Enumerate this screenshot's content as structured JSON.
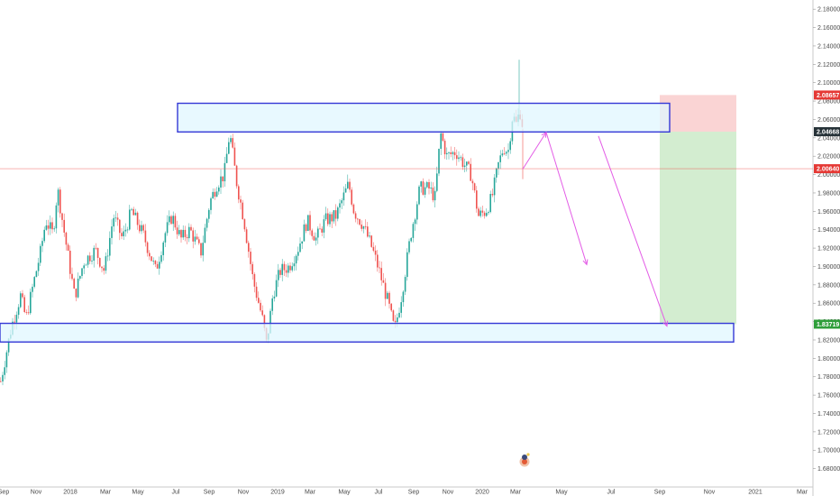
{
  "chart_data": {
    "type": "candlestick",
    "x_axis": {
      "tick_labels": [
        "Sep",
        "Nov",
        "2018",
        "Mar",
        "May",
        "Jul",
        "Sep",
        "Nov",
        "2019",
        "Mar",
        "May",
        "Jul",
        "Sep",
        "Nov",
        "2020",
        "Mar",
        "May",
        "Jul",
        "Sep",
        "Nov",
        "2021",
        "Mar"
      ]
    },
    "y_axis": {
      "range": [
        1.66,
        2.19
      ],
      "tick_labels": [
        "1.68000",
        "1.70000",
        "1.72000",
        "1.74000",
        "1.76000",
        "1.78000",
        "1.80000",
        "1.82000",
        "1.84000",
        "1.86000",
        "1.88000",
        "1.90000",
        "1.92000",
        "1.94000",
        "1.96000",
        "1.98000",
        "2.00000",
        "2.02000",
        "2.04000",
        "2.06000",
        "2.08000",
        "2.10000",
        "2.12000",
        "2.14000",
        "2.16000",
        "2.18000"
      ],
      "position": "right"
    },
    "price_tags": [
      {
        "label": "2.08657",
        "value": 2.08657,
        "color": "#e53935"
      },
      {
        "label": "2.04668",
        "value": 2.04668,
        "color": "#263238"
      },
      {
        "label": "2.00640",
        "value": 2.0064,
        "color": "#e53935"
      },
      {
        "label": "1.83719",
        "value": 1.83719,
        "color": "#2e9e3a"
      }
    ],
    "current_price_line": 2.0064,
    "zones": [
      {
        "name": "resistance",
        "low": 2.0464,
        "high": 2.0776,
        "color": "#e0f7ff",
        "border": "#3438d6"
      },
      {
        "name": "support",
        "low": 1.8178,
        "high": 1.8381,
        "color": "#e0f7ff",
        "border": "#3438d6"
      }
    ],
    "position_tool": {
      "entry": 2.04668,
      "stop": 2.08657,
      "target": 1.83719
    },
    "projection_arrows_color": "#e35ce6",
    "candle_colors": {
      "up": "#26a69a",
      "down": "#ef5350"
    },
    "price_path_keypoints": [
      [
        0,
        1.775
      ],
      [
        12,
        1.835
      ],
      [
        22,
        1.868
      ],
      [
        28,
        1.843
      ],
      [
        36,
        1.88
      ],
      [
        44,
        1.915
      ],
      [
        50,
        1.95
      ],
      [
        58,
        1.935
      ],
      [
        63,
        1.985
      ],
      [
        70,
        1.94
      ],
      [
        82,
        1.867
      ],
      [
        92,
        1.905
      ],
      [
        105,
        1.918
      ],
      [
        115,
        1.895
      ],
      [
        125,
        1.955
      ],
      [
        135,
        1.93
      ],
      [
        145,
        1.96
      ],
      [
        158,
        1.935
      ],
      [
        172,
        1.895
      ],
      [
        182,
        1.935
      ],
      [
        190,
        1.955
      ],
      [
        200,
        1.93
      ],
      [
        210,
        1.94
      ],
      [
        222,
        1.915
      ],
      [
        232,
        1.97
      ],
      [
        240,
        1.99
      ],
      [
        248,
        2.0
      ],
      [
        254,
        2.046
      ],
      [
        262,
        1.99
      ],
      [
        270,
        1.95
      ],
      [
        280,
        1.885
      ],
      [
        290,
        1.845
      ],
      [
        295,
        1.815
      ],
      [
        302,
        1.87
      ],
      [
        310,
        1.895
      ],
      [
        320,
        1.9
      ],
      [
        330,
        1.92
      ],
      [
        340,
        1.95
      ],
      [
        350,
        1.93
      ],
      [
        360,
        1.95
      ],
      [
        372,
        1.955
      ],
      [
        380,
        1.975
      ],
      [
        386,
        1.99
      ],
      [
        392,
        1.96
      ],
      [
        402,
        1.945
      ],
      [
        412,
        1.92
      ],
      [
        420,
        1.895
      ],
      [
        430,
        1.86
      ],
      [
        437,
        1.83
      ],
      [
        445,
        1.87
      ],
      [
        455,
        1.935
      ],
      [
        465,
        1.985
      ],
      [
        475,
        1.985
      ],
      [
        482,
        1.975
      ],
      [
        488,
        2.045
      ],
      [
        495,
        2.02
      ],
      [
        505,
        2.025
      ],
      [
        515,
        2.01
      ],
      [
        522,
        2.0
      ],
      [
        530,
        1.955
      ],
      [
        538,
        1.96
      ],
      [
        545,
        1.975
      ],
      [
        552,
        2.01
      ],
      [
        558,
        2.03
      ],
      [
        563,
        2.025
      ],
      [
        568,
        2.065
      ],
      [
        572,
        2.055
      ],
      [
        576,
        2.07
      ],
      [
        580,
        2.048
      ]
    ]
  }
}
